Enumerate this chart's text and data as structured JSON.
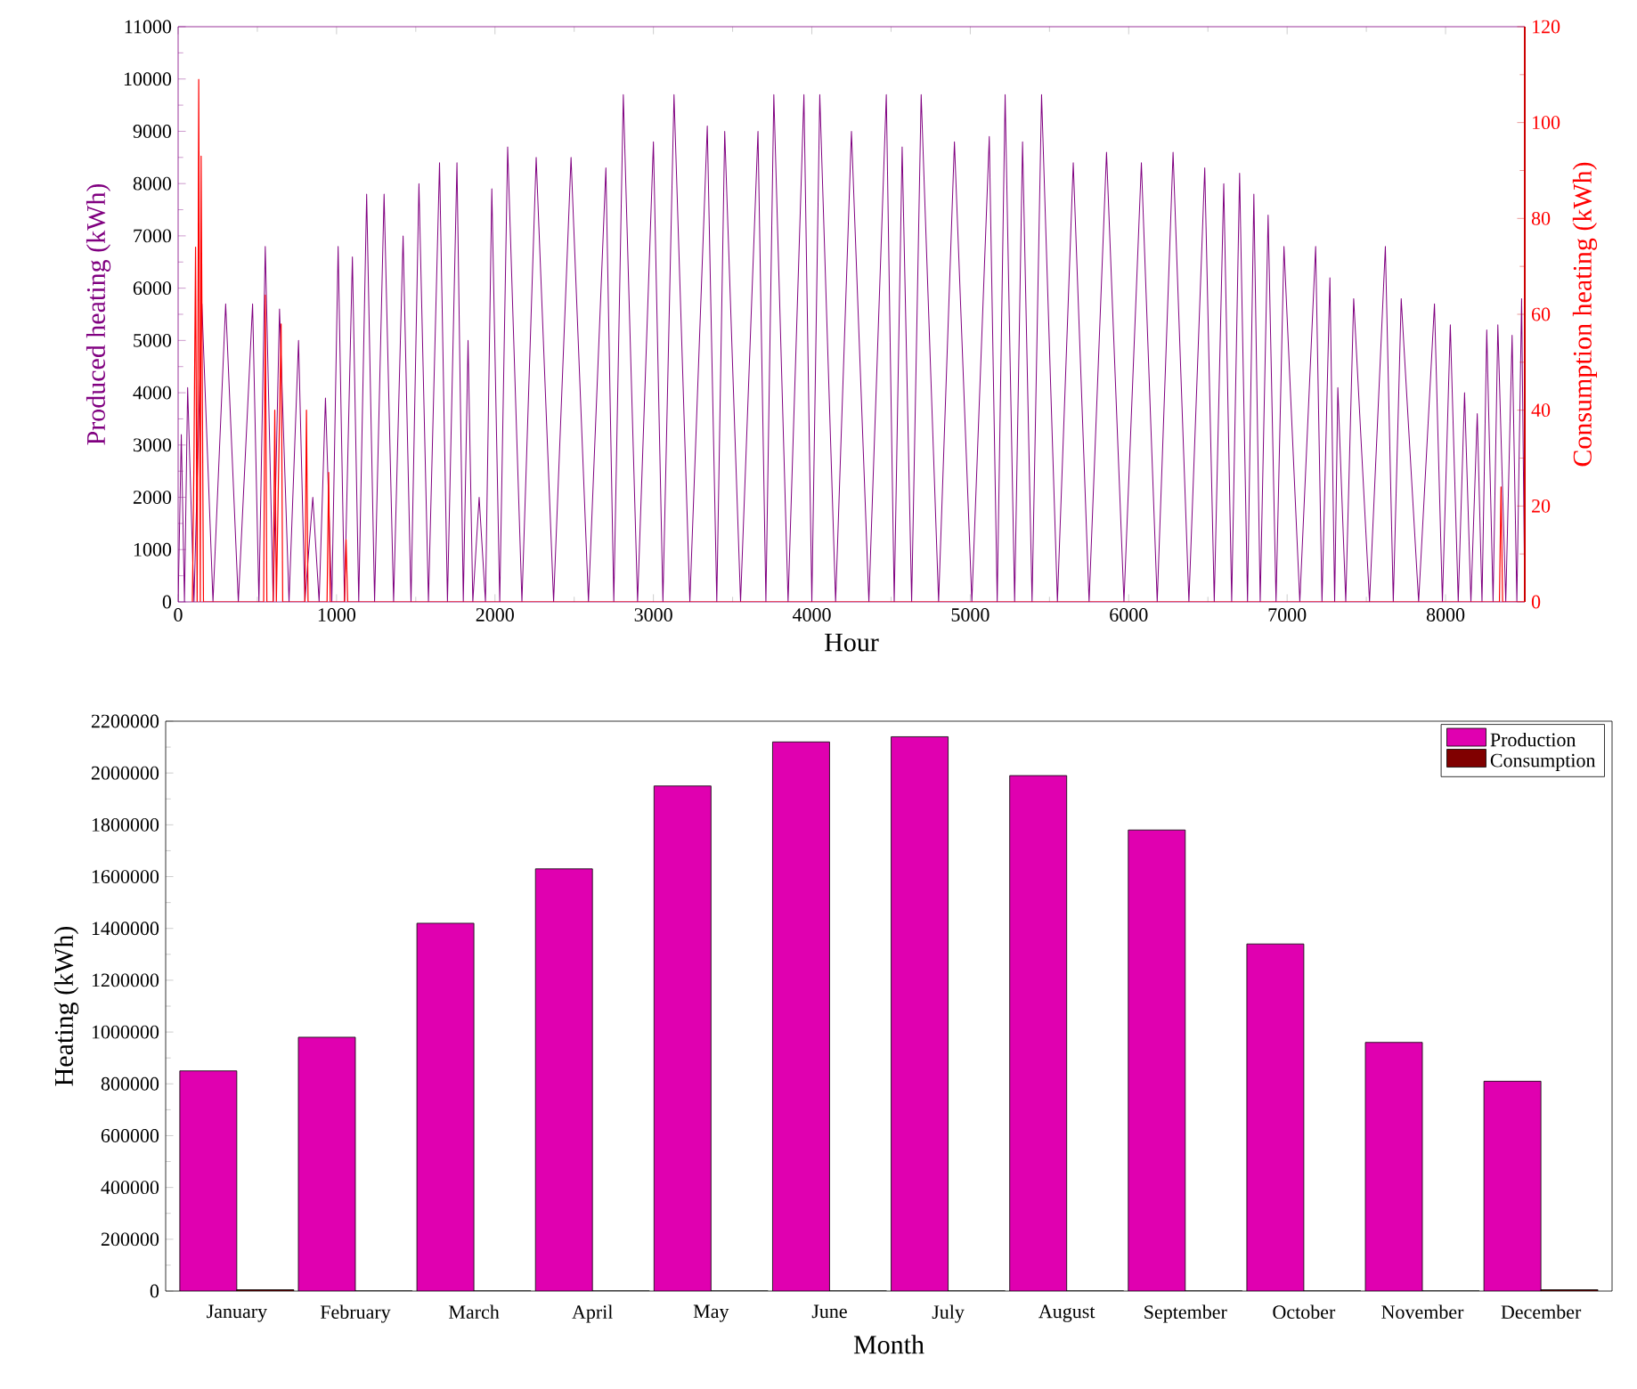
{
  "chart_data": [
    {
      "type": "line",
      "xlabel": "Hour",
      "ylabel": "Produced heating (kWh)",
      "y2label": "Consumption heating (kWh)",
      "xlim": [
        0,
        8500
      ],
      "xticks": [
        0,
        1000,
        2000,
        3000,
        4000,
        5000,
        6000,
        7000,
        8000
      ],
      "ylim": [
        0,
        11000
      ],
      "yticks": [
        0,
        1000,
        2000,
        3000,
        4000,
        5000,
        6000,
        7000,
        8000,
        9000,
        10000,
        11000
      ],
      "y2lim": [
        0,
        120
      ],
      "y2ticks": [
        0,
        20,
        40,
        60,
        80,
        100,
        120
      ],
      "series": [
        {
          "color": "#800080",
          "x": [
            0,
            20,
            40,
            60,
            100,
            150,
            220,
            300,
            380,
            470,
            510,
            550,
            600,
            640,
            700,
            760,
            800,
            850,
            890,
            930,
            970,
            1010,
            1050,
            1100,
            1140,
            1190,
            1240,
            1300,
            1360,
            1420,
            1470,
            1520,
            1580,
            1650,
            1700,
            1760,
            1800,
            1830,
            1860,
            1900,
            1940,
            1980,
            2030,
            2080,
            2170,
            2260,
            2370,
            2480,
            2590,
            2700,
            2750,
            2810,
            2900,
            3000,
            3060,
            3130,
            3230,
            3340,
            3400,
            3450,
            3550,
            3660,
            3710,
            3760,
            3850,
            3950,
            4000,
            4050,
            4150,
            4250,
            4360,
            4470,
            4520,
            4570,
            4630,
            4690,
            4800,
            4900,
            5010,
            5120,
            5170,
            5220,
            5280,
            5330,
            5390,
            5450,
            5550,
            5650,
            5750,
            5860,
            5970,
            6080,
            6180,
            6280,
            6380,
            6480,
            6540,
            6600,
            6650,
            6700,
            6750,
            6790,
            6830,
            6880,
            6930,
            6980,
            7080,
            7180,
            7220,
            7270,
            7300,
            7320,
            7370,
            7420,
            7520,
            7620,
            7670,
            7720,
            7830,
            7930,
            7980,
            8030,
            8080,
            8120,
            8160,
            8200,
            8230,
            8260,
            8300,
            8330,
            8380,
            8420,
            8450,
            8480,
            8500
          ],
          "values": [
            0,
            3200,
            0,
            4100,
            0,
            5700,
            0,
            5700,
            0,
            5700,
            0,
            6800,
            0,
            5600,
            0,
            5000,
            0,
            2000,
            0,
            3900,
            0,
            6800,
            0,
            6600,
            0,
            7800,
            0,
            7800,
            0,
            7000,
            0,
            8000,
            0,
            8400,
            0,
            8400,
            0,
            5000,
            0,
            2000,
            0,
            7900,
            0,
            8700,
            0,
            8500,
            0,
            8500,
            0,
            8300,
            0,
            9700,
            0,
            8800,
            0,
            9700,
            0,
            9100,
            0,
            9000,
            0,
            9000,
            0,
            9700,
            0,
            9700,
            0,
            9700,
            0,
            9000,
            0,
            9700,
            0,
            8700,
            0,
            9700,
            0,
            8800,
            0,
            8900,
            0,
            9700,
            0,
            8800,
            0,
            9700,
            0,
            8400,
            0,
            8600,
            0,
            8400,
            0,
            8600,
            0,
            8300,
            0,
            8000,
            0,
            8200,
            0,
            7800,
            0,
            7400,
            0,
            6800,
            0,
            6800,
            0,
            6200,
            0,
            4100,
            0,
            5800,
            0,
            6800,
            0,
            5800,
            0,
            5700,
            0,
            5300,
            0,
            4000,
            0,
            3600,
            0,
            5200,
            0,
            5300,
            0,
            5100,
            0,
            5800,
            0
          ]
        },
        {
          "color": "#ff0000",
          "axis": "y2",
          "x": [
            90,
            100,
            110,
            120,
            130,
            140,
            145,
            160,
            540,
            550,
            560,
            600,
            610,
            620,
            650,
            660,
            800,
            810,
            820,
            940,
            950,
            960,
            1050,
            1060,
            1070,
            8340,
            8350,
            8360,
            8500
          ],
          "values": [
            0,
            30,
            74,
            0,
            109,
            0,
            93,
            0,
            0,
            64,
            0,
            0,
            40,
            0,
            58,
            0,
            0,
            40,
            0,
            0,
            27,
            0,
            0,
            13,
            0,
            0,
            24,
            0,
            0
          ]
        }
      ]
    },
    {
      "type": "bar",
      "xlabel": "Month",
      "ylabel": "Heating (kWh)",
      "legend": "top right",
      "categories": [
        "January",
        "February",
        "March",
        "April",
        "May",
        "June",
        "July",
        "August",
        "September",
        "October",
        "November",
        "December"
      ],
      "ylim": [
        0,
        2200000
      ],
      "yticks": [
        0,
        200000,
        400000,
        600000,
        800000,
        1000000,
        1200000,
        1400000,
        1600000,
        1800000,
        2000000,
        2200000
      ],
      "series": [
        {
          "name": "Production",
          "color": "#e000b0",
          "values": [
            850000,
            980000,
            1420000,
            1630000,
            1950000,
            2120000,
            2140000,
            1990000,
            1780000,
            1340000,
            960000,
            810000
          ]
        },
        {
          "name": "Consumption",
          "color": "#800000",
          "values": [
            5000,
            0,
            0,
            0,
            0,
            0,
            0,
            0,
            0,
            0,
            0,
            5000
          ]
        }
      ]
    }
  ]
}
